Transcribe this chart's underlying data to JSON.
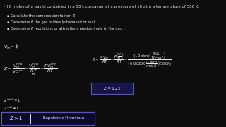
{
  "bg_color": "#0d0d0d",
  "text_color": "#e8e8e8",
  "title_line": "10 moles of a gas is contained in a 50 L container at a pressure of 10 atm a temperature of 500 K.",
  "bullets": [
    "Calculate the compression factor, Z",
    "Determine if the gas is ideally-behaved or real.",
    "Determine if repulsions or attractions predominate in the gas."
  ],
  "z_box_color": "#15154a",
  "z_box_border": "#5555cc",
  "conclusion_box_color": "#0a0a2a",
  "conclusion_box_border": "#5555cc",
  "fs_title": 4.0,
  "fs_body": 3.7,
  "fs_math": 4.5,
  "fs_math_sm": 3.8,
  "fs_conclusion": 5.0
}
